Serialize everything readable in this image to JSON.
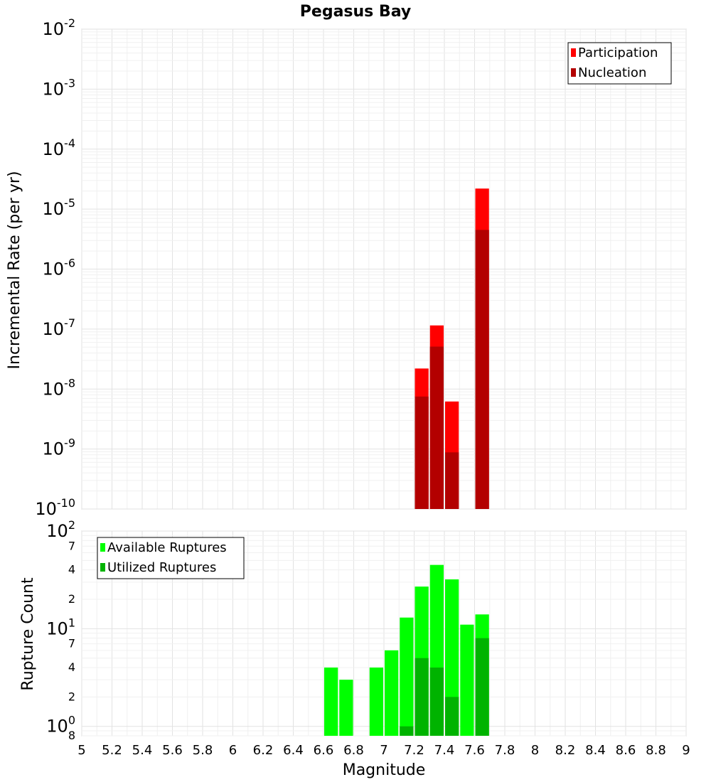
{
  "chart_data": {
    "type": "bar",
    "title": "Pegasus Bay",
    "xlabel": "Magnitude",
    "xlim": [
      5,
      9
    ],
    "x_ticks": [
      "5",
      "5.2",
      "5.4",
      "5.6",
      "5.8",
      "6",
      "6.2",
      "6.4",
      "6.6",
      "6.8",
      "7",
      "7.2",
      "7.4",
      "7.6",
      "7.8",
      "8",
      "8.2",
      "8.4",
      "8.6",
      "8.8",
      "9"
    ],
    "bin_width": 0.1,
    "grid": true,
    "panels": [
      {
        "ylabel": "Incremental Rate (per yr)",
        "yscale": "log",
        "ylim": [
          1e-10,
          0.01
        ],
        "y_tick_labels": [
          {
            "base": "10",
            "exp": "-2"
          },
          {
            "base": "10",
            "exp": "-3"
          },
          {
            "base": "10",
            "exp": "-4"
          },
          {
            "base": "10",
            "exp": "-5"
          },
          {
            "base": "10",
            "exp": "-6"
          },
          {
            "base": "10",
            "exp": "-7"
          },
          {
            "base": "10",
            "exp": "-8"
          },
          {
            "base": "10",
            "exp": "-9"
          },
          {
            "base": "10",
            "exp": "-10"
          }
        ],
        "legend_position": "top-right",
        "series": [
          {
            "name": "Participation",
            "color": "#ff0000",
            "x": [
              7.25,
              7.35,
              7.45,
              7.65
            ],
            "values": [
              2.2e-08,
              1.15e-07,
              6.2e-09,
              2.2e-05
            ]
          },
          {
            "name": "Nucleation",
            "color": "#b30000",
            "x": [
              7.25,
              7.35,
              7.45,
              7.65
            ],
            "values": [
              7.5e-09,
              5.1e-08,
              8.8e-10,
              4.5e-06
            ]
          }
        ]
      },
      {
        "ylabel": "Rupture Count",
        "yscale": "log",
        "ylim": [
          0.8,
          100
        ],
        "y_tick_labels": [
          {
            "base": "10",
            "exp": "2"
          },
          {
            "base": "7",
            "exp": ""
          },
          {
            "base": "4",
            "exp": ""
          },
          {
            "base": "2",
            "exp": ""
          },
          {
            "base": "10",
            "exp": "1"
          },
          {
            "base": "7",
            "exp": ""
          },
          {
            "base": "4",
            "exp": ""
          },
          {
            "base": "2",
            "exp": ""
          },
          {
            "base": "10",
            "exp": "0"
          },
          {
            "base": "8",
            "exp": ""
          }
        ],
        "legend_position": "top-left",
        "series": [
          {
            "name": "Available Ruptures",
            "color": "#00ff00",
            "x": [
              6.65,
              6.75,
              6.95,
              7.05,
              7.15,
              7.25,
              7.35,
              7.45,
              7.55,
              7.65
            ],
            "values": [
              4,
              3,
              4,
              6,
              13,
              27,
              45,
              32,
              11,
              14
            ]
          },
          {
            "name": "Utilized Ruptures",
            "color": "#00b300",
            "x": [
              7.15,
              7.25,
              7.35,
              7.45,
              7.65
            ],
            "values": [
              1,
              5,
              4,
              2,
              8
            ]
          }
        ]
      }
    ]
  }
}
